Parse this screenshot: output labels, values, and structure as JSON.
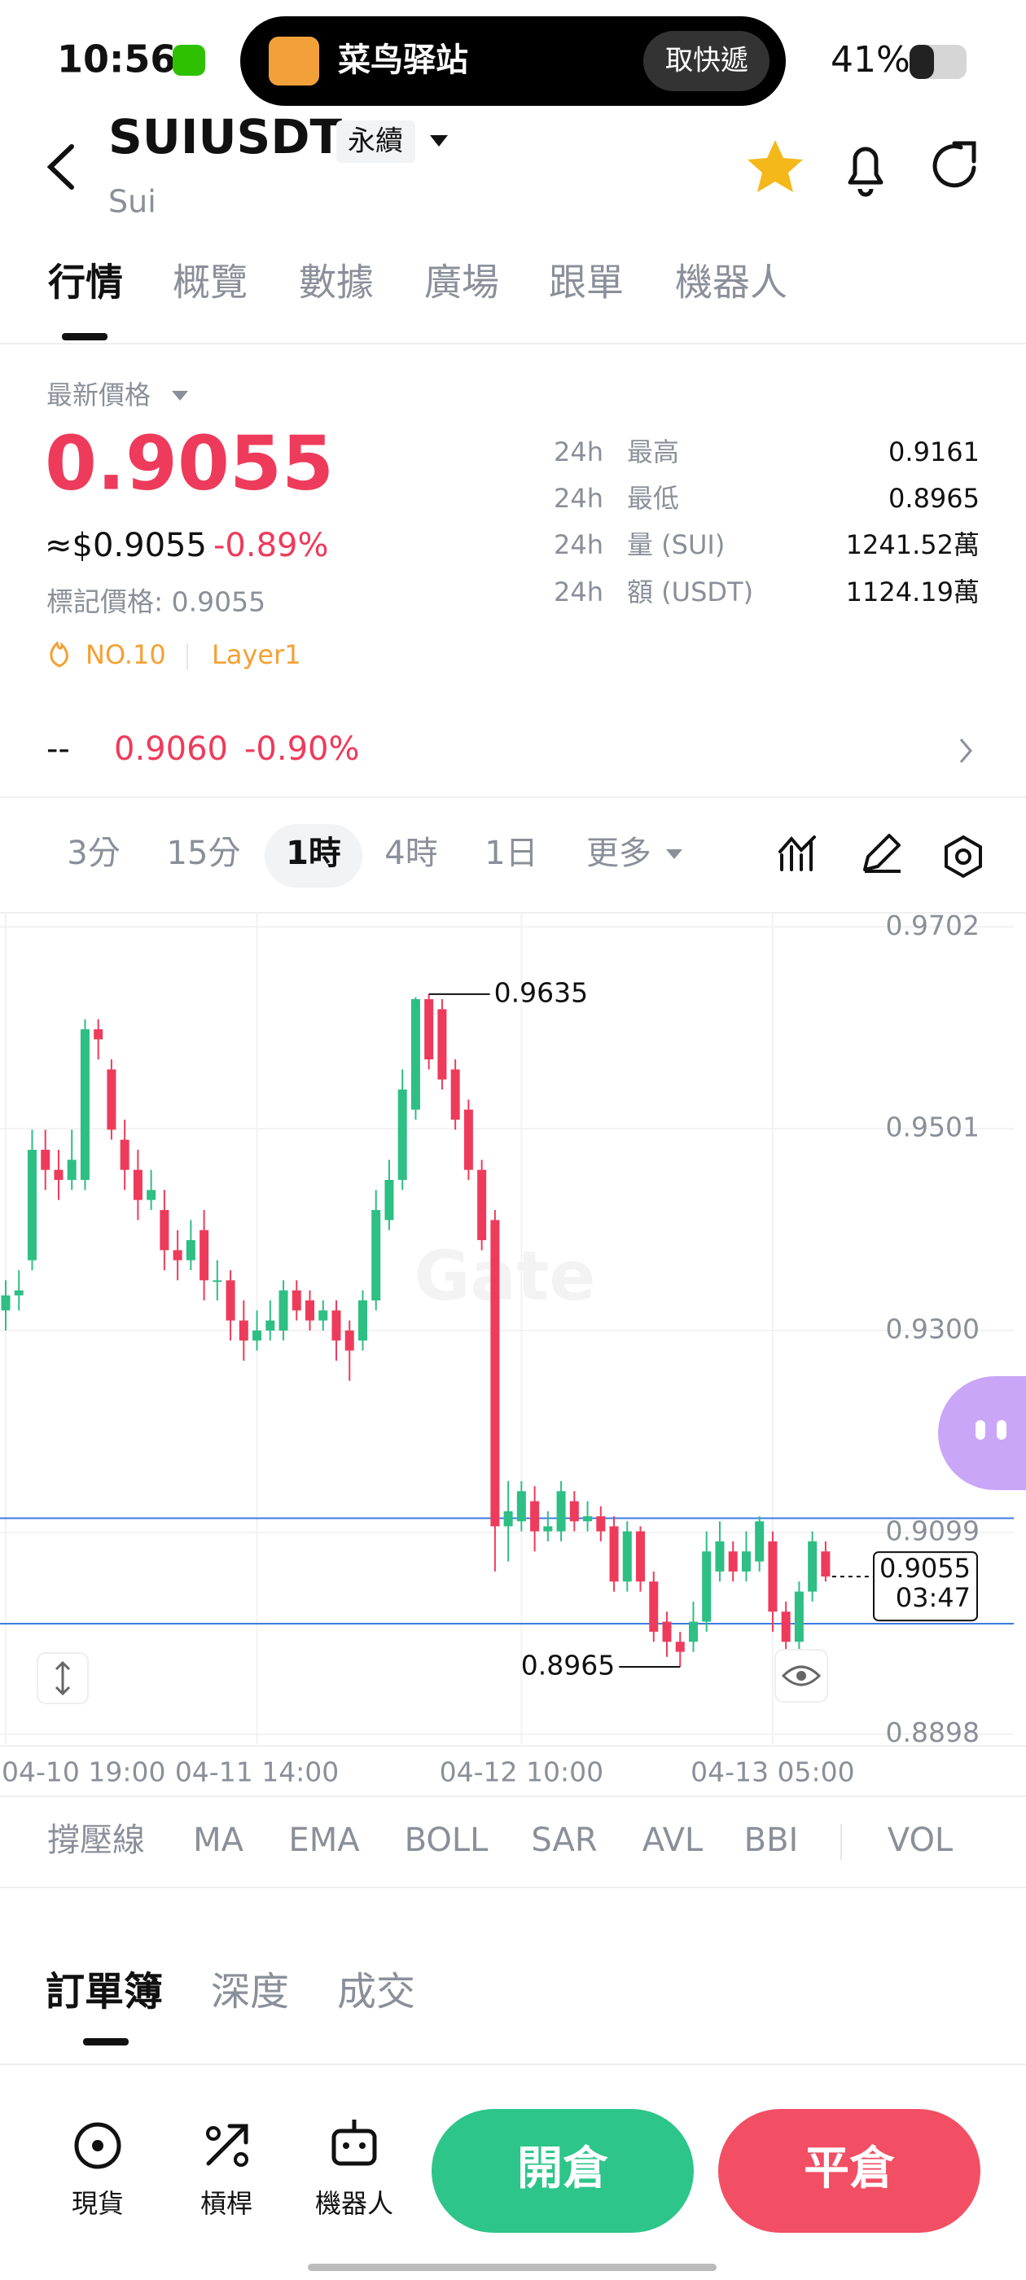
{
  "status": {
    "time": "10:56",
    "island_title": "菜鸟驿站",
    "island_action": "取快遞",
    "battery": "41%"
  },
  "header": {
    "symbol": "SUIUSDT",
    "contract": "永續",
    "name": "Sui"
  },
  "tabs": [
    "行情",
    "概覽",
    "數據",
    "廣場",
    "跟單",
    "機器人"
  ],
  "price": {
    "label": "最新價格",
    "last": "0.9055",
    "usd": "≈$0.9055",
    "change": "-0.89%",
    "mark": "標記價格: 0.9055",
    "tags": [
      "NO.10",
      "Layer1"
    ]
  },
  "stats": [
    [
      "24h",
      "最高",
      "0.9161"
    ],
    [
      "24h",
      "最低",
      "0.8965"
    ],
    [
      "24h",
      "量 (SUI)",
      "1241.52萬"
    ],
    [
      "24h",
      "額 (USDT)",
      "1124.19萬"
    ]
  ],
  "index_row": {
    "name": "--",
    "price": "0.9060",
    "change": "-0.90%"
  },
  "intervals": [
    "3分",
    "15分",
    "1時",
    "4時",
    "1日",
    "更多"
  ],
  "chart": {
    "type": "candlestick",
    "watermark": "Gate",
    "up_color": "#2dbf84",
    "down_color": "#ee3b5b",
    "ylim": [
      0.8888,
      0.9716
    ],
    "yticks": [
      0.9702,
      0.9501,
      {
        "value": 0.93,
        "label": "0.9300"
      },
      0.9099,
      0.8898
    ],
    "categories": [
      "04-10 19:00",
      null,
      null,
      null,
      null,
      null,
      null,
      null,
      null,
      null,
      null,
      null,
      null,
      null,
      null,
      null,
      null,
      null,
      null,
      "04-11 14:00",
      null,
      null,
      null,
      null,
      null,
      null,
      null,
      null,
      null,
      null,
      null,
      null,
      null,
      null,
      null,
      null,
      null,
      null,
      null,
      "04-12 10:00",
      null,
      null,
      null,
      null,
      null,
      null,
      null,
      null,
      null,
      null,
      null,
      null,
      null,
      null,
      null,
      null,
      null,
      null,
      "04-13 05:00",
      null,
      null,
      null,
      null
    ],
    "open": [
      0.932,
      0.9335,
      0.937,
      0.948,
      0.946,
      0.945,
      0.945,
      0.96,
      0.956,
      0.949,
      0.946,
      0.943,
      0.942,
      0.938,
      0.937,
      0.94,
      0.935,
      0.935,
      0.931,
      0.929,
      0.93,
      0.93,
      0.934,
      0.933,
      0.931,
      0.932,
      0.93,
      0.929,
      0.933,
      0.941,
      0.945,
      0.952,
      0.963,
      0.962,
      0.956,
      0.952,
      0.946,
      0.941,
      0.9105,
      0.911,
      0.913,
      0.91,
      0.91,
      0.913,
      0.911,
      0.9115,
      0.9105,
      0.905,
      0.91,
      0.905,
      0.901,
      0.899,
      0.899,
      0.901,
      0.906,
      0.908,
      0.906,
      0.907,
      0.909,
      0.902,
      0.899,
      0.904,
      0.908
    ],
    "high": [
      0.935,
      0.936,
      0.95,
      0.95,
      0.948,
      0.95,
      0.961,
      0.961,
      0.957,
      0.951,
      0.948,
      0.946,
      0.944,
      0.94,
      0.941,
      0.942,
      0.937,
      0.936,
      0.933,
      0.932,
      0.933,
      0.935,
      0.935,
      0.934,
      0.933,
      0.933,
      0.931,
      0.934,
      0.944,
      0.947,
      0.956,
      0.9632,
      0.9635,
      0.963,
      0.957,
      0.953,
      0.947,
      0.942,
      0.915,
      0.915,
      0.9145,
      0.912,
      0.915,
      0.914,
      0.913,
      0.9125,
      0.9115,
      0.911,
      0.9105,
      0.906,
      0.902,
      0.9,
      0.903,
      0.91,
      0.911,
      0.909,
      0.91,
      0.9115,
      0.91,
      0.903,
      0.905,
      0.91,
      0.909
    ],
    "low": [
      0.93,
      0.932,
      0.936,
      0.944,
      0.943,
      0.944,
      0.944,
      0.957,
      0.949,
      0.944,
      0.941,
      0.942,
      0.936,
      0.935,
      0.936,
      0.933,
      0.933,
      0.929,
      0.927,
      0.928,
      0.929,
      0.929,
      0.931,
      0.93,
      0.93,
      0.927,
      0.925,
      0.928,
      0.932,
      0.94,
      0.944,
      0.951,
      0.956,
      0.954,
      0.95,
      0.945,
      0.938,
      0.906,
      0.907,
      0.91,
      0.908,
      0.909,
      0.909,
      0.91,
      0.91,
      0.909,
      0.904,
      0.904,
      0.904,
      0.899,
      0.8975,
      0.8965,
      0.898,
      0.9,
      0.905,
      0.905,
      0.905,
      0.906,
      0.9,
      0.897,
      0.898,
      0.903,
      0.905
    ],
    "close": [
      0.9335,
      0.934,
      0.948,
      0.946,
      0.945,
      0.947,
      0.96,
      0.959,
      0.95,
      0.946,
      0.943,
      0.944,
      0.938,
      0.937,
      0.939,
      0.935,
      0.935,
      0.931,
      0.929,
      0.93,
      0.931,
      0.934,
      0.932,
      0.931,
      0.932,
      0.929,
      0.928,
      0.933,
      0.942,
      0.945,
      0.954,
      0.963,
      0.957,
      0.955,
      0.951,
      0.946,
      0.939,
      0.9105,
      0.912,
      0.914,
      0.91,
      0.9105,
      0.914,
      0.911,
      0.9115,
      0.91,
      0.905,
      0.91,
      0.905,
      0.9,
      0.899,
      0.898,
      0.901,
      0.908,
      0.909,
      0.906,
      0.908,
      0.911,
      0.902,
      0.899,
      0.904,
      0.909,
      0.9055
    ],
    "price_lines": [
      0.9113,
      0.9008
    ],
    "high_label": "0.9635",
    "low_label": "0.8965",
    "last_label": "0.9055",
    "countdown": "03:47"
  },
  "indicators": [
    "撐壓線",
    "MA",
    "EMA",
    "BOLL",
    "SAR",
    "AVL",
    "BBI",
    "VOL"
  ],
  "book_tabs": [
    "訂單簿",
    "深度",
    "成交"
  ],
  "bottom_nav": [
    "現貨",
    "槓桿",
    "機器人"
  ],
  "actions": {
    "open": "開倉",
    "close": "平倉"
  }
}
